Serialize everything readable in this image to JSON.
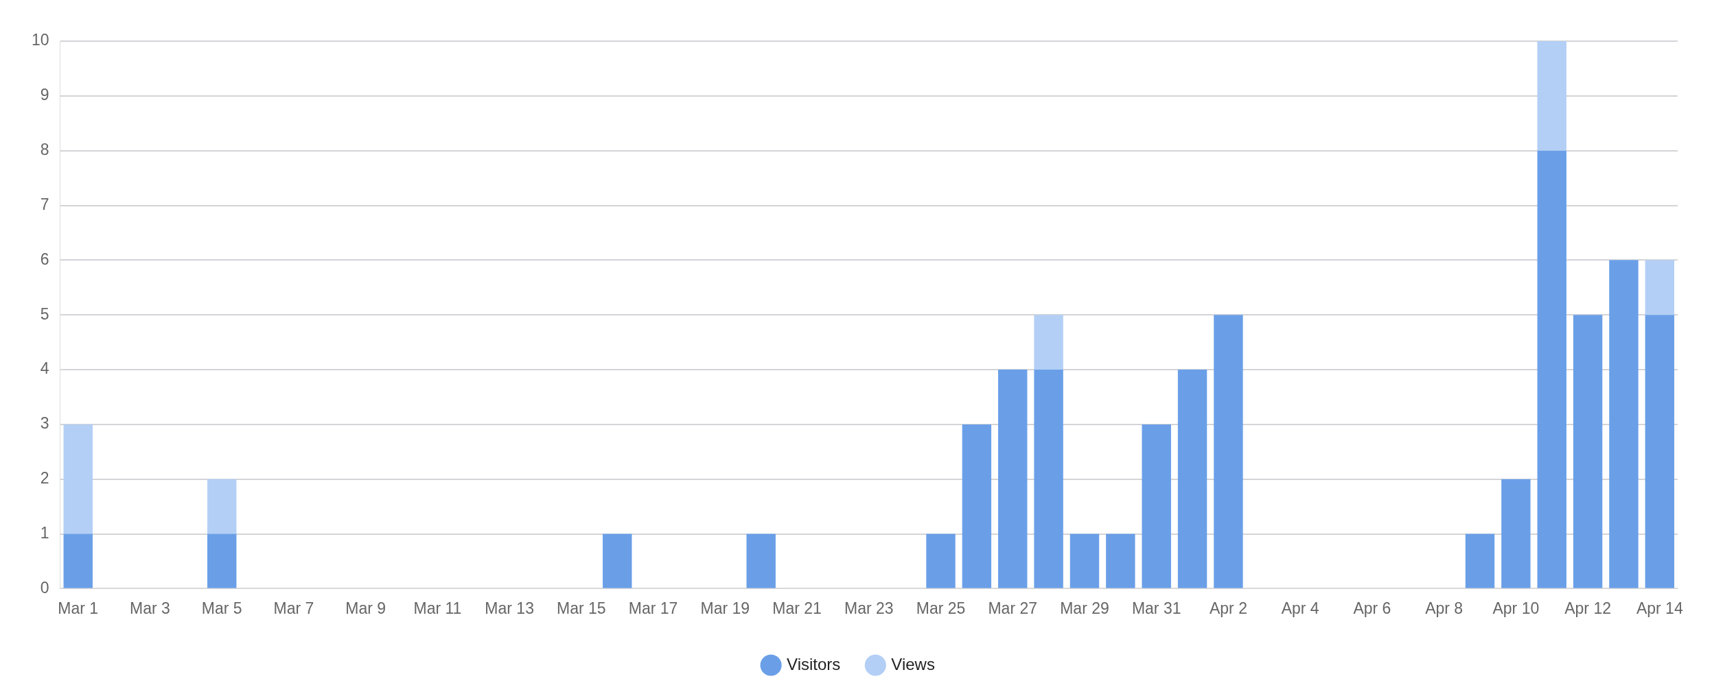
{
  "chart_data": {
    "type": "bar",
    "stacked": true,
    "grid": "y",
    "legend": "bottom",
    "marker": "circle",
    "categories": [
      "Mar 1",
      null,
      "Mar 3",
      null,
      "Mar 5",
      null,
      "Mar 7",
      null,
      "Mar 9",
      null,
      "Mar 11",
      null,
      "Mar 13",
      null,
      "Mar 15",
      null,
      "Mar 17",
      null,
      "Mar 19",
      null,
      "Mar 21",
      null,
      "Mar 23",
      null,
      "Mar 25",
      null,
      "Mar 27",
      null,
      "Mar 29",
      null,
      "Mar 31",
      null,
      "Apr 2",
      null,
      "Apr 4",
      null,
      "Apr 6",
      null,
      "Apr 8",
      null,
      "Apr 10",
      null,
      "Apr 12",
      null,
      "Apr 14"
    ],
    "ylim": [
      0,
      10
    ],
    "yticks": [
      0,
      1,
      2,
      3,
      4,
      5,
      6,
      7,
      8,
      9,
      10
    ],
    "series": [
      {
        "name": "Visitors",
        "color": "#6a9fe8",
        "values": [
          1,
          0,
          0,
          0,
          1,
          0,
          0,
          0,
          0,
          0,
          0,
          0,
          0,
          0,
          0,
          1,
          0,
          0,
          0,
          1,
          0,
          0,
          0,
          0,
          1,
          3,
          4,
          4,
          1,
          1,
          3,
          4,
          5,
          0,
          0,
          0,
          0,
          0,
          0,
          1,
          2,
          8,
          5,
          6,
          5
        ]
      },
      {
        "name": "Views",
        "color": "#b3cff5",
        "values": [
          2,
          0,
          0,
          0,
          1,
          0,
          0,
          0,
          0,
          0,
          0,
          0,
          0,
          0,
          0,
          0,
          0,
          0,
          0,
          0,
          0,
          0,
          0,
          0,
          0,
          0,
          0,
          1,
          0,
          0,
          0,
          0,
          0,
          0,
          0,
          0,
          0,
          0,
          0,
          0,
          0,
          2,
          0,
          0,
          1
        ]
      }
    ]
  }
}
